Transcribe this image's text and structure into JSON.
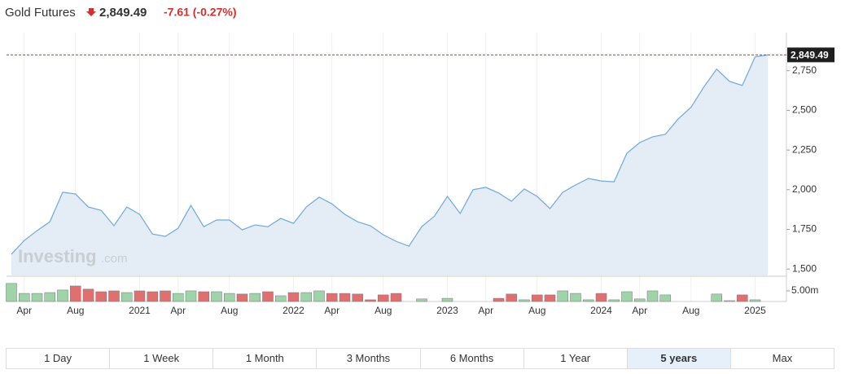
{
  "header": {
    "title": "Gold Futures",
    "price": {
      "value": 2849.49,
      "label": "2,849.49"
    },
    "change": "-7.61 (-0.27%)"
  },
  "watermark": {
    "brand": "Investing",
    "suffix": ".com"
  },
  "chart_data": {
    "type": "area",
    "color": "#6fa8dc",
    "fill": "#e4edf6",
    "categories": [
      null,
      "Apr",
      null,
      null,
      null,
      "Aug",
      null,
      null,
      null,
      null,
      "2021",
      null,
      null,
      "Apr",
      null,
      null,
      null,
      "Aug",
      null,
      null,
      null,
      null,
      "2022",
      null,
      null,
      "Apr",
      null,
      null,
      null,
      "Aug",
      null,
      null,
      null,
      null,
      "2023",
      null,
      null,
      "Apr",
      null,
      null,
      null,
      "Aug",
      null,
      null,
      null,
      null,
      "2024",
      null,
      null,
      "Apr",
      null,
      null,
      null,
      "Aug",
      null,
      null,
      null,
      null,
      "2025",
      null
    ],
    "values": [
      1593,
      1680,
      1742,
      1798,
      1984,
      1973,
      1891,
      1870,
      1773,
      1891,
      1845,
      1721,
      1706,
      1757,
      1901,
      1767,
      1809,
      1809,
      1747,
      1778,
      1767,
      1819,
      1788,
      1891,
      1953,
      1911,
      1845,
      1798,
      1773,
      1716,
      1675,
      1644,
      1767,
      1834,
      1958,
      1850,
      2000,
      2015,
      1979,
      1927,
      2005,
      1958,
      1881,
      1984,
      2030,
      2071,
      2055,
      2050,
      2230,
      2297,
      2333,
      2349,
      2446,
      2519,
      2647,
      2760,
      2683,
      2657,
      2837,
      2849
    ],
    "ylim": [
      1460,
      2990
    ],
    "yticks": [
      {
        "value": 1500,
        "label": "1,500"
      },
      {
        "value": 1750,
        "label": "1,750"
      },
      {
        "value": 2000,
        "label": "2,000"
      },
      {
        "value": 2250,
        "label": "2,250"
      },
      {
        "value": 2500,
        "label": "2,500"
      },
      {
        "value": 2750,
        "label": "2,750"
      }
    ],
    "current_line_color": "#c0392b",
    "volume": {
      "values": [
        8.5,
        3.8,
        3.8,
        4.2,
        5.4,
        7.3,
        5.8,
        4.6,
        5.0,
        4.2,
        5.0,
        4.6,
        5.0,
        3.8,
        5.0,
        4.6,
        4.6,
        3.8,
        3.5,
        3.8,
        4.6,
        2.7,
        4.2,
        4.2,
        5.0,
        3.8,
        3.8,
        3.5,
        0.8,
        3.1,
        3.8,
        null,
        1.2,
        null,
        1.5,
        null,
        null,
        null,
        1.5,
        3.5,
        0.8,
        3.1,
        3.1,
        5.0,
        3.8,
        0.8,
        3.8,
        0.8,
        4.6,
        1.2,
        5.0,
        3.1,
        null,
        null,
        null,
        3.5,
        0.4,
        3.1,
        0.8,
        null
      ],
      "colors": [
        "#9fd4a8",
        "#9fd4a8",
        "#9fd4a8",
        "#9fd4a8",
        "#9fd4a8",
        "#e07070",
        "#e07070",
        "#e07070",
        "#e07070",
        "#9fd4a8",
        "#e07070",
        "#e07070",
        "#e07070",
        "#9fd4a8",
        "#9fd4a8",
        "#e07070",
        "#9fd4a8",
        "#9fd4a8",
        "#e07070",
        "#9fd4a8",
        "#e07070",
        "#9fd4a8",
        "#e07070",
        "#9fd4a8",
        "#9fd4a8",
        "#e07070",
        "#e07070",
        "#e07070",
        "#e07070",
        "#e07070",
        "#e07070",
        null,
        "#9fd4a8",
        null,
        "#9fd4a8",
        null,
        null,
        null,
        "#e07070",
        "#e07070",
        "#9fd4a8",
        "#e07070",
        "#e07070",
        "#9fd4a8",
        "#9fd4a8",
        "#9fd4a8",
        "#e07070",
        "#9fd4a8",
        "#9fd4a8",
        "#9fd4a8",
        "#9fd4a8",
        "#9fd4a8",
        null,
        null,
        null,
        "#9fd4a8",
        "#9fd4a8",
        "#e07070",
        "#9fd4a8",
        null
      ],
      "ylim": [
        0,
        11.5
      ],
      "yticks": [
        {
          "value": 5,
          "label": "5.00m"
        }
      ]
    }
  },
  "range_buttons": {
    "labels": [
      "1 Day",
      "1 Week",
      "1 Month",
      "3 Months",
      "6 Months",
      "1 Year",
      "5 years",
      "Max"
    ],
    "selected": 6
  }
}
